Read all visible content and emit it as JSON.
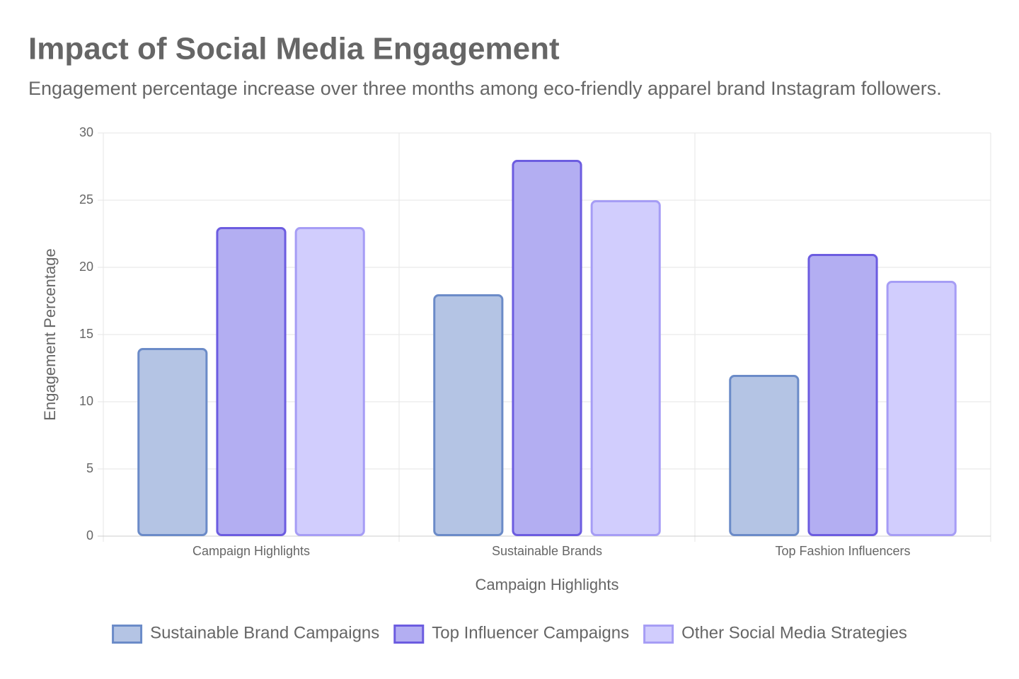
{
  "chart_data": {
    "type": "bar",
    "title": "Impact of Social Media Engagement",
    "subtitle": "Engagement percentage increase over three months among eco-friendly apparel brand Instagram followers.",
    "x_label": "Campaign Highlights",
    "y_label": "Engagement Percentage",
    "categories": [
      "Campaign Highlights",
      "Sustainable Brands",
      "Top Fashion Influencers"
    ],
    "series": [
      {
        "name": "Sustainable Brand Campaigns",
        "color": "#b4c4e4",
        "border_color": "#6b8bc8",
        "values": [
          14,
          18,
          12
        ]
      },
      {
        "name": "Top Influencer Campaigns",
        "color": "#b3aef2",
        "border_color": "#6c5ce0",
        "values": [
          23,
          28,
          21
        ]
      },
      {
        "name": "Other Social Media Strategies",
        "color": "#d1cdfd",
        "border_color": "#a69df5",
        "values": [
          23,
          25,
          19
        ]
      }
    ],
    "ylim": [
      0,
      30
    ],
    "yticks": [
      0,
      5,
      10,
      15,
      20,
      25,
      30
    ],
    "grid": true,
    "legend": "bottom"
  }
}
